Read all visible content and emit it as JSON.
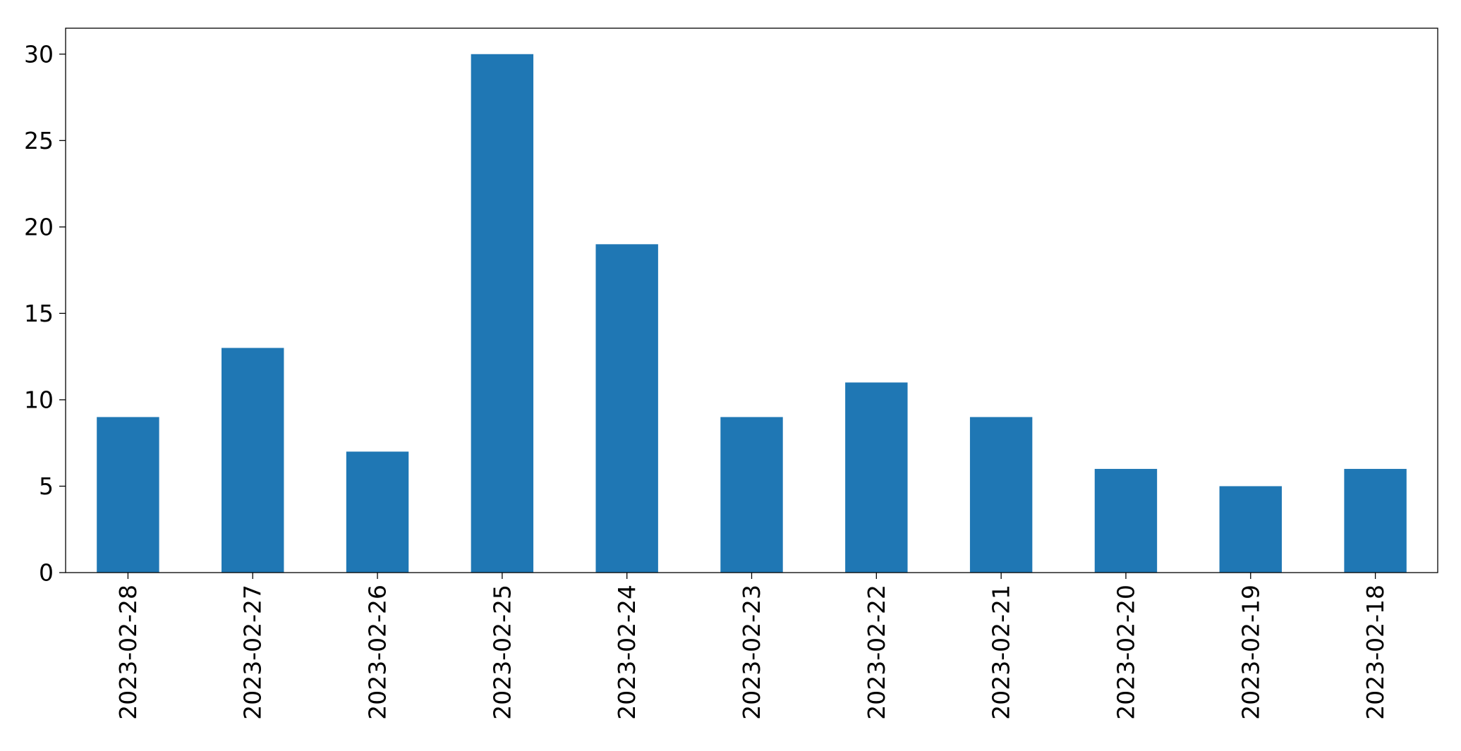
{
  "chart_data": {
    "type": "bar",
    "title": "",
    "xlabel": "",
    "ylabel": "",
    "categories": [
      "2023-02-28",
      "2023-02-27",
      "2023-02-26",
      "2023-02-25",
      "2023-02-24",
      "2023-02-23",
      "2023-02-22",
      "2023-02-21",
      "2023-02-20",
      "2023-02-19",
      "2023-02-18"
    ],
    "values": [
      9,
      13,
      7,
      30,
      19,
      9,
      11,
      9,
      6,
      5,
      6
    ],
    "ylim": [
      0,
      31.5
    ],
    "yticks": [
      0,
      5,
      10,
      15,
      20,
      25,
      30
    ],
    "grid": false,
    "legend": "none",
    "colors": {
      "bar": "#1f77b4",
      "axis": "#000000",
      "background": "#ffffff"
    }
  }
}
